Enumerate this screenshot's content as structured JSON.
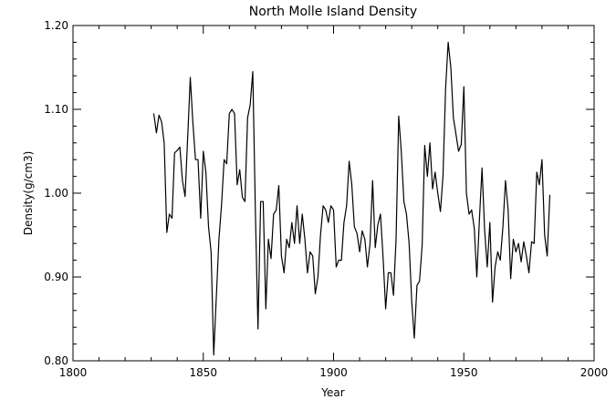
{
  "chart_data": {
    "type": "line",
    "title": "North Molle Island Density",
    "xlabel": "Year",
    "ylabel": "Density(g/cm3)",
    "xlim": [
      1800,
      2000
    ],
    "ylim": [
      0.8,
      1.2
    ],
    "xticks": [
      1800,
      1850,
      1900,
      1950,
      2000
    ],
    "xtick_labels": [
      "1800",
      "1850",
      "1900",
      "1950",
      "2000"
    ],
    "yticks": [
      0.8,
      0.9,
      1.0,
      1.1,
      1.2
    ],
    "ytick_labels": [
      "0.80",
      "0.90",
      "1.00",
      "1.10",
      "1.20"
    ],
    "grid": false,
    "series": [
      {
        "color": "#000000",
        "x": [
          1831,
          1832,
          1833,
          1834,
          1835,
          1836,
          1837,
          1838,
          1839,
          1840,
          1841,
          1842,
          1843,
          1844,
          1845,
          1846,
          1847,
          1848,
          1849,
          1850,
          1851,
          1852,
          1853,
          1854,
          1855,
          1856,
          1857,
          1858,
          1859,
          1860,
          1861,
          1862,
          1863,
          1864,
          1865,
          1866,
          1867,
          1868,
          1869,
          1870,
          1871,
          1872,
          1873,
          1874,
          1875,
          1876,
          1877,
          1878,
          1879,
          1880,
          1881,
          1882,
          1883,
          1884,
          1885,
          1886,
          1887,
          1888,
          1889,
          1890,
          1891,
          1892,
          1893,
          1894,
          1895,
          1896,
          1897,
          1898,
          1899,
          1900,
          1901,
          1902,
          1903,
          1904,
          1905,
          1906,
          1907,
          1908,
          1909,
          1910,
          1911,
          1912,
          1913,
          1914,
          1915,
          1916,
          1917,
          1918,
          1919,
          1920,
          1921,
          1922,
          1923,
          1924,
          1925,
          1926,
          1927,
          1928,
          1929,
          1930,
          1931,
          1932,
          1933,
          1934,
          1935,
          1936,
          1937,
          1938,
          1939,
          1940,
          1941,
          1942,
          1943,
          1944,
          1945,
          1946,
          1947,
          1948,
          1949,
          1950,
          1951,
          1952,
          1953,
          1954,
          1955,
          1956,
          1957,
          1958,
          1959,
          1960,
          1961,
          1962,
          1963,
          1964,
          1965,
          1966,
          1967,
          1968,
          1969,
          1970,
          1971,
          1972,
          1973,
          1974,
          1975,
          1976,
          1977,
          1978,
          1979,
          1980,
          1981,
          1982,
          1983
        ],
        "y": [
          1.095,
          1.072,
          1.093,
          1.085,
          1.06,
          0.953,
          0.975,
          0.97,
          1.048,
          1.051,
          1.055,
          1.015,
          0.996,
          1.065,
          1.138,
          1.085,
          1.04,
          1.04,
          0.97,
          1.05,
          1.025,
          0.96,
          0.93,
          0.807,
          0.875,
          0.945,
          0.985,
          1.04,
          1.035,
          1.095,
          1.1,
          1.095,
          1.01,
          1.028,
          0.995,
          0.99,
          1.09,
          1.105,
          1.145,
          0.975,
          0.838,
          0.99,
          0.99,
          0.862,
          0.945,
          0.922,
          0.975,
          0.98,
          1.009,
          0.925,
          0.905,
          0.945,
          0.935,
          0.965,
          0.94,
          0.985,
          0.94,
          0.975,
          0.945,
          0.905,
          0.93,
          0.925,
          0.88,
          0.9,
          0.95,
          0.985,
          0.98,
          0.965,
          0.985,
          0.98,
          0.912,
          0.92,
          0.92,
          0.965,
          0.985,
          1.038,
          1.01,
          0.96,
          0.952,
          0.93,
          0.955,
          0.945,
          0.912,
          0.94,
          1.015,
          0.935,
          0.962,
          0.975,
          0.925,
          0.862,
          0.905,
          0.905,
          0.878,
          0.945,
          1.092,
          1.05,
          0.99,
          0.975,
          0.94,
          0.87,
          0.827,
          0.89,
          0.895,
          0.938,
          1.057,
          1.02,
          1.06,
          1.005,
          1.025,
          1.0,
          0.978,
          1.02,
          1.125,
          1.18,
          1.15,
          1.09,
          1.07,
          1.05,
          1.058,
          1.127,
          1.0,
          0.975,
          0.98,
          0.958,
          0.9,
          0.97,
          1.03,
          0.955,
          0.912,
          0.965,
          0.87,
          0.912,
          0.93,
          0.92,
          0.96,
          1.015,
          0.98,
          0.898,
          0.945,
          0.93,
          0.94,
          0.918,
          0.942,
          0.925,
          0.905,
          0.942,
          0.94,
          1.025,
          1.01,
          1.04,
          0.95,
          0.925,
          0.998
        ]
      }
    ]
  }
}
